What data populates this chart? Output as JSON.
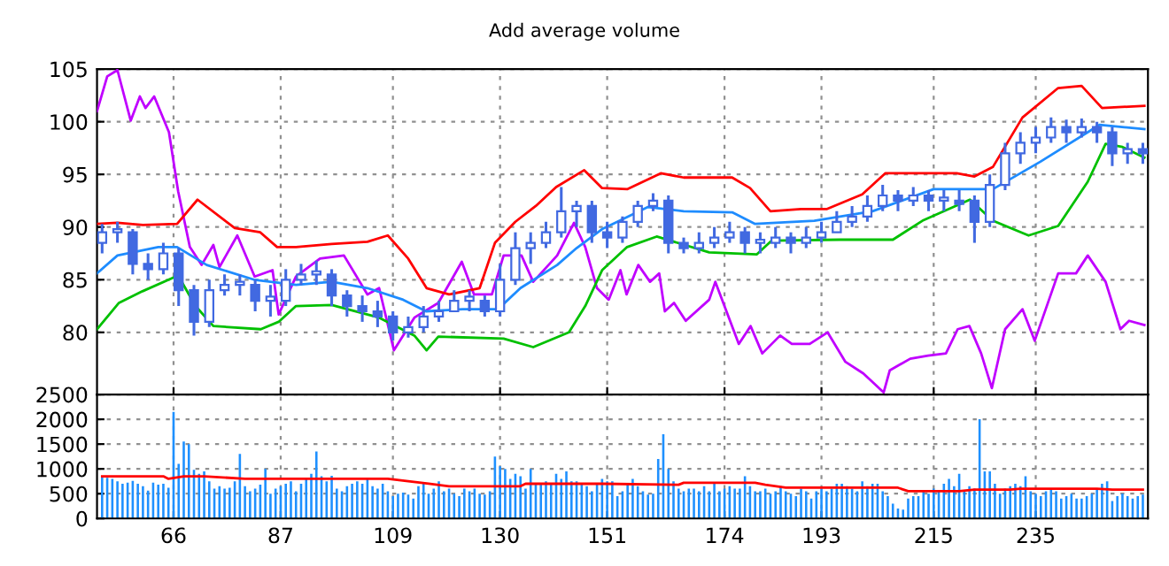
{
  "chart_data": [
    {
      "type": "line",
      "title": "Add average volume",
      "xlim": [
        51,
        257
      ],
      "ylim": [
        74.1,
        105
      ],
      "xticks": [
        66,
        87,
        109,
        130,
        151,
        174,
        193,
        215,
        235
      ],
      "yticks": [
        80,
        85,
        90,
        95,
        100,
        105
      ],
      "grid": true,
      "tick_labels": "y",
      "series": [
        {
          "color": "#c000ff",
          "x": [
            51,
            53,
            55,
            57.6,
            59.4,
            60.5,
            62.2,
            65.1,
            66.9,
            69.2,
            71.5,
            73.8,
            75,
            78.5,
            81.9,
            85.4,
            86.6,
            90,
            94.7,
            99.4,
            104,
            106.3,
            109.2,
            113.2,
            117.9,
            122.5,
            124.9,
            128.4,
            130.7,
            134.2,
            136.5,
            141.2,
            144.5,
            146.7,
            149,
            151.3,
            153.6,
            154.8,
            157.1,
            159.4,
            161.2,
            162.3,
            164.1,
            166.4,
            171,
            172.2,
            176.8,
            179.1,
            181.4,
            184.9,
            187.2,
            190.7,
            194.2,
            197.7,
            201.2,
            205.2,
            206.4,
            210.4,
            213.9,
            217.4,
            219.7,
            222,
            224.3,
            226.4,
            229,
            232.4,
            234.8,
            239.4,
            242.9,
            245.2,
            248.7,
            251.6,
            253.3,
            256.3
          ],
          "values": [
            101.0,
            104.3,
            104.9,
            100.1,
            102.4,
            101.3,
            102.4,
            99.0,
            93.4,
            88.1,
            86.4,
            88.3,
            86.2,
            89.2,
            85.3,
            85.9,
            81.7,
            85.3,
            87.0,
            87.3,
            83.6,
            84.2,
            78.3,
            81.4,
            82.8,
            86.7,
            83.6,
            83.6,
            87.3,
            87.3,
            84.8,
            87.3,
            90.4,
            88.1,
            84.2,
            83.1,
            85.9,
            83.6,
            86.4,
            84.8,
            85.6,
            82.0,
            82.8,
            81.1,
            83.1,
            84.8,
            78.9,
            80.6,
            78.0,
            79.7,
            78.9,
            78.9,
            80.0,
            77.2,
            76.1,
            74.3,
            76.4,
            77.5,
            77.8,
            78.0,
            80.3,
            80.6,
            78.0,
            74.7,
            80.3,
            82.2,
            79.2,
            85.6,
            85.6,
            87.3,
            84.8,
            80.3,
            81.1,
            80.7
          ]
        },
        {
          "color": "#ff0000",
          "x": [
            51,
            55,
            60,
            66.7,
            70.7,
            78,
            83,
            86.3,
            90,
            97,
            104,
            108,
            112,
            115.6,
            120,
            126,
            129,
            133,
            137,
            141,
            146.5,
            150,
            155,
            161.5,
            166,
            175.5,
            179,
            183,
            189,
            194,
            201,
            205.5,
            219.5,
            223,
            226.6,
            232.4,
            239.4,
            244,
            248,
            252,
            256.3
          ],
          "values": [
            90.3,
            90.4,
            90.2,
            90.3,
            92.6,
            89.9,
            89.5,
            88.1,
            88.1,
            88.4,
            88.6,
            89.2,
            87.0,
            84.2,
            83.6,
            84.2,
            88.5,
            90.5,
            92.0,
            93.8,
            95.4,
            93.7,
            93.6,
            95.1,
            94.7,
            94.7,
            93.7,
            91.5,
            91.7,
            91.7,
            93.1,
            95.1,
            95.1,
            94.8,
            95.7,
            100.4,
            103.2,
            103.4,
            101.3,
            101.4,
            101.5
          ]
        },
        {
          "color": "#1e8cff",
          "x": [
            51,
            55,
            63,
            66.7,
            72.5,
            81.8,
            90,
            97,
            104,
            111,
            115.5,
            122.7,
            129.6,
            134,
            141.2,
            145,
            150,
            159,
            166,
            175.5,
            180,
            191.6,
            203,
            215,
            226.6,
            235.9,
            247.5,
            256.3
          ],
          "values": [
            85.6,
            87.3,
            88.1,
            88.1,
            86.4,
            85.0,
            84.5,
            84.8,
            84.2,
            83.1,
            82.0,
            82.2,
            82.2,
            84.2,
            86.4,
            88.0,
            89.8,
            91.9,
            91.5,
            91.4,
            90.3,
            90.6,
            91.5,
            93.6,
            93.6,
            96.2,
            99.7,
            99.3
          ]
        },
        {
          "color": "#00c000",
          "x": [
            51,
            55.3,
            59.9,
            66.9,
            70.3,
            73.8,
            83.1,
            86.6,
            90,
            97,
            106.3,
            113.2,
            115.6,
            117.9,
            130.7,
            136.5,
            143.5,
            146.7,
            150,
            154.9,
            160.7,
            171,
            180.3,
            183.2,
            196.6,
            207,
            212.8,
            222.1,
            226.6,
            233.6,
            239.4,
            245.2,
            248.7,
            252,
            256.3
          ],
          "values": [
            80.3,
            82.8,
            83.9,
            85.4,
            82.5,
            80.6,
            80.3,
            81.0,
            82.5,
            82.6,
            81.4,
            79.7,
            78.3,
            79.6,
            79.4,
            78.6,
            80.0,
            82.5,
            85.9,
            88.1,
            89.1,
            87.6,
            87.4,
            88.7,
            88.8,
            88.8,
            90.6,
            92.6,
            90.6,
            89.2,
            90.1,
            94.3,
            97.9,
            97.6,
            96.6
          ]
        },
        {
          "type": "candlestick",
          "color": "#4169e1",
          "x": [
            52,
            55,
            58,
            61,
            64,
            67,
            70,
            73,
            76,
            79,
            82,
            85,
            88,
            91,
            94,
            97,
            100,
            103,
            106,
            109,
            112,
            115,
            118,
            121,
            124,
            127,
            130,
            133,
            136,
            139,
            142,
            145,
            148,
            151,
            154,
            157,
            160,
            163,
            166,
            169,
            172,
            175,
            178,
            181,
            184,
            187,
            190,
            193,
            196,
            199,
            202,
            205,
            208,
            211,
            214,
            217,
            220,
            223,
            226,
            229,
            232,
            235,
            238,
            241,
            244,
            247,
            250,
            253,
            256
          ],
          "ohlc": [
            [
              88.5,
              90.3,
              87.5,
              89.5
            ],
            [
              89.5,
              90.5,
              88.5,
              89.8
            ],
            [
              89.5,
              89.8,
              85.5,
              86.5
            ],
            [
              86.5,
              87.5,
              85,
              86
            ],
            [
              86,
              88.5,
              85.5,
              87.5
            ],
            [
              87.5,
              88,
              82.5,
              84
            ],
            [
              84,
              84.5,
              79.7,
              81
            ],
            [
              81,
              85,
              80.5,
              84
            ],
            [
              84,
              85.5,
              83.5,
              84.5
            ],
            [
              84.5,
              85.5,
              83.5,
              84.8
            ],
            [
              84.5,
              85,
              82,
              83
            ],
            [
              83,
              84.5,
              81.5,
              83.4
            ],
            [
              83,
              86,
              82.5,
              85
            ],
            [
              85,
              86.5,
              84.5,
              85.5
            ],
            [
              85.5,
              86.8,
              84.5,
              85.8
            ],
            [
              85.5,
              86,
              82.5,
              83.5
            ],
            [
              83.5,
              84,
              81.5,
              82.5
            ],
            [
              82.5,
              83.5,
              81,
              82
            ],
            [
              82,
              83,
              80.5,
              81.5
            ],
            [
              81.5,
              82,
              79.2,
              80
            ],
            [
              80,
              81.5,
              79.5,
              80.5
            ],
            [
              80.5,
              82.5,
              80,
              81.5
            ],
            [
              81.5,
              83,
              81,
              82
            ],
            [
              82,
              84,
              82,
              83
            ],
            [
              83,
              84,
              82,
              83.4
            ],
            [
              83,
              83.5,
              81.5,
              82
            ],
            [
              82,
              86.5,
              81.5,
              85
            ],
            [
              85,
              89.5,
              84.5,
              88
            ],
            [
              88,
              89.5,
              86.5,
              88.5
            ],
            [
              88.5,
              90.5,
              88,
              89.5
            ],
            [
              89.5,
              93.8,
              89,
              91.5
            ],
            [
              91.5,
              92.5,
              90,
              92
            ],
            [
              92,
              92.5,
              88.5,
              89.5
            ],
            [
              89.5,
              90.5,
              88,
              89
            ],
            [
              89,
              91,
              88.5,
              90.5
            ],
            [
              90.5,
              92.5,
              90,
              92
            ],
            [
              92,
              93.2,
              91.5,
              92.5
            ],
            [
              92.5,
              93,
              87.5,
              88.5
            ],
            [
              88.5,
              89,
              87.5,
              88
            ],
            [
              88,
              89.5,
              87.5,
              88.5
            ],
            [
              88.5,
              90,
              88,
              89
            ],
            [
              89,
              90.5,
              88.5,
              89.5
            ],
            [
              89.5,
              90,
              87.5,
              88.5
            ],
            [
              88.5,
              89.5,
              87.5,
              88.8
            ],
            [
              88.5,
              90,
              88,
              89
            ],
            [
              89,
              89.5,
              87.5,
              88.5
            ],
            [
              88.5,
              90,
              88,
              89
            ],
            [
              89,
              90.5,
              88.5,
              89.5
            ],
            [
              89.5,
              91.5,
              89.5,
              90.5
            ],
            [
              90.5,
              92,
              90,
              91
            ],
            [
              91,
              93,
              90.5,
              92
            ],
            [
              92,
              94,
              91.5,
              93
            ],
            [
              93,
              93.5,
              91.5,
              92.5
            ],
            [
              92.5,
              93.8,
              92,
              93
            ],
            [
              93,
              93.5,
              91.5,
              92.5
            ],
            [
              92.5,
              93.5,
              91.5,
              92.8
            ],
            [
              92.5,
              93.5,
              91.5,
              92.2
            ],
            [
              92.5,
              93,
              88.5,
              90.5
            ],
            [
              90.5,
              95,
              90,
              94
            ],
            [
              94,
              98,
              93.5,
              97
            ],
            [
              97,
              99,
              96,
              98
            ],
            [
              98,
              99.5,
              97,
              98.5
            ],
            [
              98.5,
              100.4,
              98,
              99.5
            ],
            [
              99.5,
              100.2,
              98,
              99
            ],
            [
              99,
              100.3,
              98.5,
              99.5
            ],
            [
              99.5,
              100,
              98,
              99
            ],
            [
              99,
              99.5,
              95.8,
              97
            ],
            [
              97,
              98,
              96,
              97.4
            ],
            [
              97.4,
              98,
              96,
              97
            ]
          ]
        }
      ]
    },
    {
      "type": "bar",
      "xlim": [
        51,
        257
      ],
      "ylim": [
        0,
        2500
      ],
      "xticks": [
        66,
        87,
        109,
        130,
        151,
        174,
        193,
        215,
        235
      ],
      "yticks": [
        0,
        500,
        1000,
        1500,
        2000,
        2500
      ],
      "grid": true,
      "series": [
        {
          "color": "#1e90ff",
          "x": [
            52,
            53,
            54,
            55,
            56,
            57,
            58,
            59,
            60,
            61,
            62,
            63,
            64,
            65,
            66,
            67,
            68,
            69,
            70,
            71,
            72,
            73,
            74,
            75,
            76,
            77,
            78,
            79,
            80,
            81,
            82,
            83,
            84,
            85,
            86,
            87,
            88,
            89,
            90,
            91,
            92,
            93,
            94,
            95,
            96,
            97,
            98,
            99,
            100,
            101,
            102,
            103,
            104,
            105,
            106,
            107,
            108,
            109,
            110,
            111,
            112,
            113,
            114,
            115,
            116,
            117,
            118,
            119,
            120,
            121,
            122,
            123,
            124,
            125,
            126,
            127,
            128,
            129,
            130,
            131,
            132,
            133,
            134,
            135,
            136,
            137,
            138,
            139,
            140,
            141,
            142,
            143,
            144,
            145,
            146,
            147,
            148,
            149,
            150,
            151,
            152,
            153,
            154,
            155,
            156,
            157,
            158,
            159,
            160,
            161,
            162,
            163,
            164,
            165,
            166,
            167,
            168,
            169,
            170,
            171,
            172,
            173,
            174,
            175,
            176,
            177,
            178,
            179,
            180,
            181,
            182,
            183,
            184,
            185,
            186,
            187,
            188,
            189,
            190,
            191,
            192,
            193,
            194,
            195,
            196,
            197,
            198,
            199,
            200,
            201,
            202,
            203,
            204,
            205,
            206,
            207,
            208,
            209,
            210,
            211,
            212,
            213,
            214,
            215,
            216,
            217,
            218,
            219,
            220,
            221,
            222,
            223,
            224,
            225,
            226,
            227,
            228,
            229,
            230,
            231,
            232,
            233,
            234,
            235,
            236,
            237,
            238,
            239,
            240,
            241,
            242,
            243,
            244,
            245,
            246,
            247,
            248,
            249,
            250,
            251,
            252,
            253,
            254,
            255,
            256
          ],
          "values": [
            850,
            820,
            800,
            750,
            700,
            720,
            760,
            700,
            650,
            560,
            720,
            680,
            700,
            620,
            2150,
            1100,
            1550,
            1500,
            980,
            900,
            950,
            750,
            600,
            650,
            600,
            620,
            750,
            1300,
            650,
            550,
            600,
            680,
            1000,
            500,
            600,
            650,
            700,
            750,
            550,
            700,
            800,
            900,
            1350,
            850,
            750,
            860,
            600,
            550,
            650,
            700,
            750,
            700,
            820,
            650,
            600,
            700,
            550,
            450,
            500,
            520,
            480,
            400,
            650,
            700,
            500,
            600,
            750,
            550,
            600,
            500,
            450,
            600,
            550,
            600,
            500,
            480,
            550,
            1250,
            1050,
            1000,
            800,
            900,
            850,
            600,
            1000,
            700,
            700,
            750,
            700,
            900,
            800,
            950,
            750,
            750,
            700,
            650,
            550,
            700,
            800,
            750,
            750,
            450,
            550,
            700,
            800,
            650,
            550,
            480,
            500,
            1200,
            1700,
            1000,
            750,
            600,
            550,
            600,
            600,
            550,
            650,
            550,
            700,
            550,
            600,
            650,
            600,
            600,
            850,
            650,
            550,
            550,
            600,
            500,
            550,
            650,
            550,
            500,
            450,
            600,
            550,
            400,
            550,
            600,
            550,
            600,
            700,
            700,
            650,
            600,
            550,
            750,
            650,
            700,
            700,
            550,
            450,
            300,
            200,
            180,
            400,
            450,
            450,
            550,
            500,
            600,
            550,
            700,
            800,
            650,
            900,
            550,
            650,
            600,
            2000,
            950,
            950,
            700,
            500,
            600,
            650,
            700,
            650,
            850,
            550,
            500,
            450,
            550,
            600,
            550,
            400,
            450,
            500,
            400,
            400,
            450,
            500,
            600,
            700,
            750,
            350,
            450,
            500,
            450,
            400,
            450,
            480
          ]
        },
        {
          "type": "line",
          "color": "#ff0000",
          "x": [
            52,
            64,
            65,
            68,
            72,
            80,
            108,
            112,
            116,
            120,
            134,
            135,
            150,
            165,
            166,
            180,
            182,
            186,
            208,
            210,
            220,
            223,
            230,
            232,
            247,
            250,
            256
          ],
          "values": [
            850,
            850,
            800,
            850,
            850,
            800,
            800,
            750,
            700,
            650,
            650,
            700,
            700,
            680,
            720,
            720,
            680,
            620,
            620,
            550,
            550,
            580,
            580,
            600,
            600,
            580,
            580
          ]
        }
      ]
    }
  ]
}
